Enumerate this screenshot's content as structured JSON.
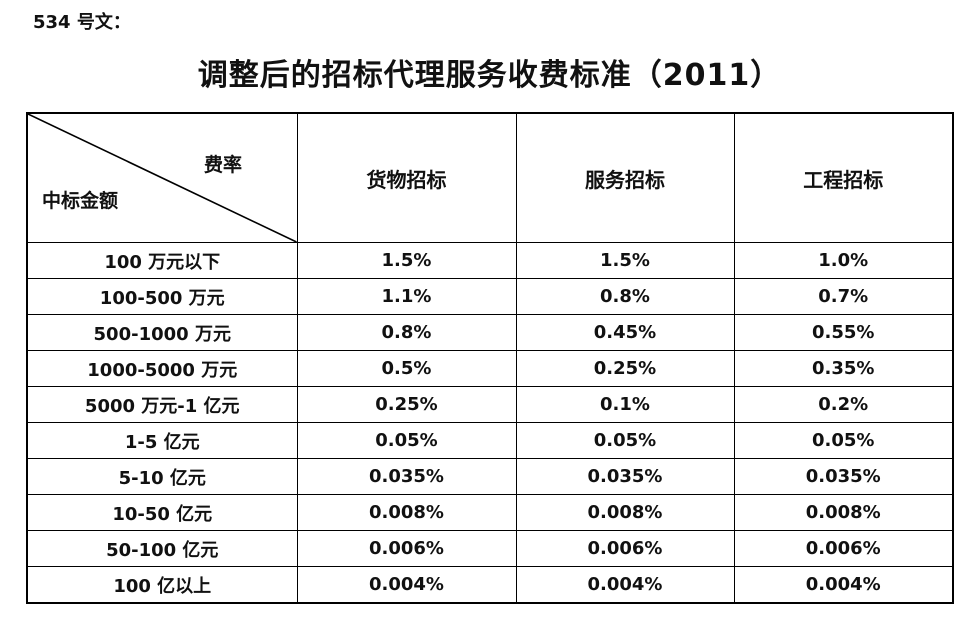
{
  "page": {
    "doc_ref": "534 号文：",
    "title": "调整后的招标代理服务收费标准（2011）"
  },
  "table": {
    "corner": {
      "fee_rate_label": "费率",
      "bid_amount_label": "中标金额"
    },
    "columns": [
      "货物招标",
      "服务招标",
      "工程招标"
    ],
    "rows": [
      {
        "label": "100 万元以下",
        "values": [
          "1.5%",
          "1.5%",
          "1.0%"
        ]
      },
      {
        "label": "100-500 万元",
        "values": [
          "1.1%",
          "0.8%",
          "0.7%"
        ]
      },
      {
        "label": "500-1000 万元",
        "values": [
          "0.8%",
          "0.45%",
          "0.55%"
        ]
      },
      {
        "label": "1000-5000 万元",
        "values": [
          "0.5%",
          "0.25%",
          "0.35%"
        ]
      },
      {
        "label": "5000 万元-1 亿元",
        "values": [
          "0.25%",
          "0.1%",
          "0.2%"
        ]
      },
      {
        "label": "1-5 亿元",
        "values": [
          "0.05%",
          "0.05%",
          "0.05%"
        ]
      },
      {
        "label": "5-10 亿元",
        "values": [
          "0.035%",
          "0.035%",
          "0.035%"
        ]
      },
      {
        "label": "10-50 亿元",
        "values": [
          "0.008%",
          "0.008%",
          "0.008%"
        ]
      },
      {
        "label": "50-100 亿元",
        "values": [
          "0.006%",
          "0.006%",
          "0.006%"
        ]
      },
      {
        "label": "100 亿以上",
        "values": [
          "0.004%",
          "0.004%",
          "0.004%"
        ]
      }
    ],
    "colors": {
      "text": "#111111",
      "border": "#000000",
      "background": "#ffffff"
    }
  }
}
